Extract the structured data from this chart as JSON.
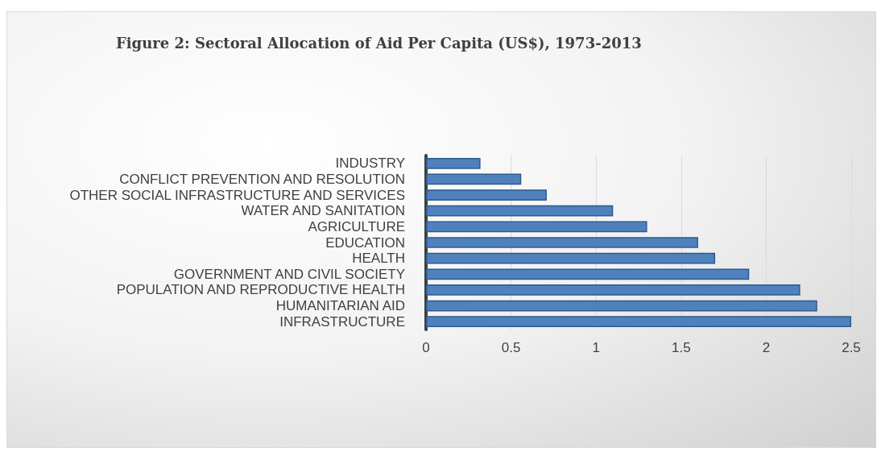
{
  "chart_data": {
    "type": "bar",
    "orientation": "horizontal",
    "title": "Figure 2: Sectoral Allocation of Aid Per Capita (US$), 1973-2013",
    "categories": [
      "INDUSTRY",
      "CONFLICT PREVENTION AND RESOLUTION",
      "OTHER SOCIAL INFRASTRUCTURE AND SERVICES",
      "WATER AND SANITATION",
      "AGRICULTURE",
      "EDUCATION",
      "HEALTH",
      "GOVERNMENT AND CIVIL SOCIETY",
      "POPULATION AND REPRODUCTIVE HEALTH",
      "HUMANITARIAN AID",
      "INFRASTRUCTURE"
    ],
    "values": [
      0.32,
      0.56,
      0.71,
      1.1,
      1.3,
      1.6,
      1.7,
      1.9,
      2.2,
      2.3,
      2.5
    ],
    "color": "#4f81bd",
    "xlim": [
      0,
      2.5
    ],
    "xticks": [
      0,
      0.5,
      1,
      1.5,
      2,
      2.5
    ],
    "grid": "x"
  }
}
